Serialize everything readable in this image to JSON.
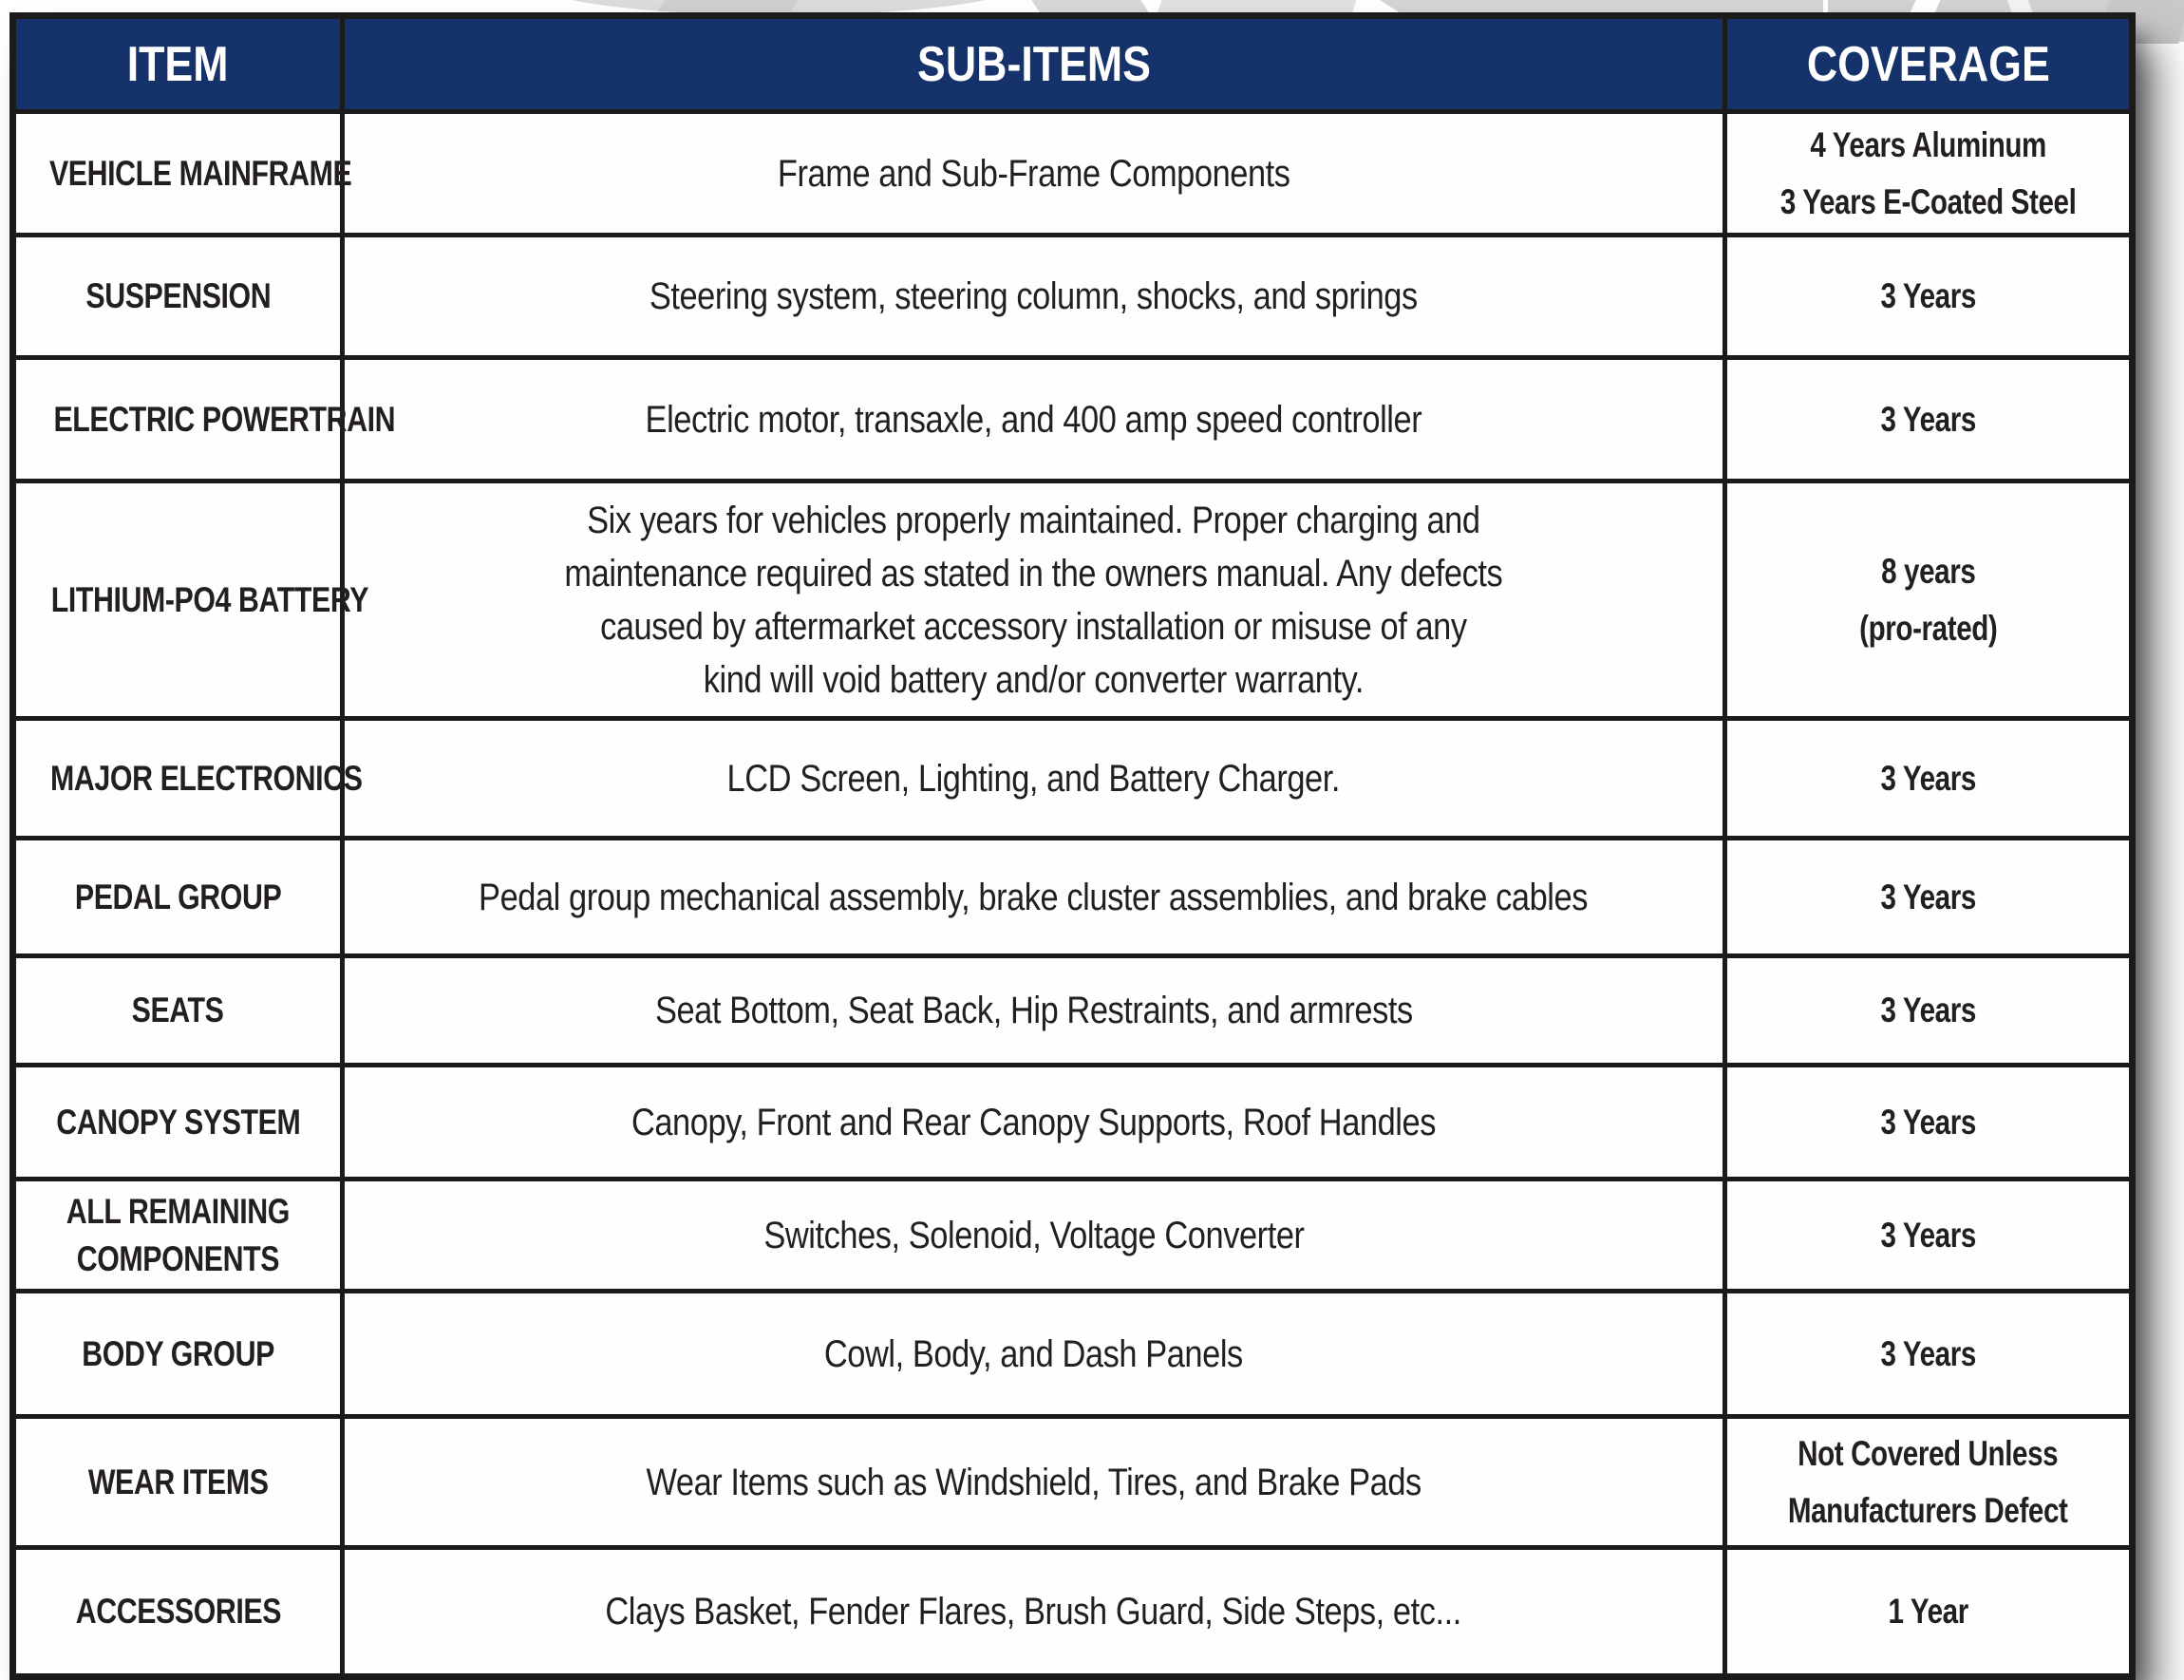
{
  "colors": {
    "header_background": "#16326a",
    "header_text": "#ffffff",
    "body_text": "#231f20",
    "border": "#1b1b1b",
    "watermark_gray": "#d5d5d5"
  },
  "headers": [
    "ITEM",
    "SUB-ITEMS",
    "COVERAGE"
  ],
  "rows": [
    {
      "item": "VEHICLE MAINFRAME",
      "sub_items": "Frame and Sub-Frame Components",
      "coverage": "4 Years Aluminum\n3 Years E-Coated Steel"
    },
    {
      "item": "SUSPENSION",
      "sub_items": "Steering system, steering column, shocks, and springs",
      "coverage": "3 Years"
    },
    {
      "item": "ELECTRIC POWERTRAIN",
      "sub_items": "Electric motor, transaxle, and 400 amp speed controller",
      "coverage": "3 Years"
    },
    {
      "item": "LITHIUM-PO4 BATTERY",
      "sub_items": "Six years for vehicles properly maintained. Proper charging and\nmaintenance required as stated in the owners manual. Any defects\ncaused by aftermarket accessory installation or misuse of any\nkind will void battery and/or converter warranty.",
      "coverage": "8 years\n(pro-rated)"
    },
    {
      "item": "MAJOR ELECTRONICS",
      "sub_items": "LCD Screen, Lighting, and Battery Charger.",
      "coverage": "3 Years"
    },
    {
      "item": "PEDAL GROUP",
      "sub_items": "Pedal group mechanical assembly, brake cluster assemblies, and brake cables",
      "coverage": "3 Years"
    },
    {
      "item": "SEATS",
      "sub_items": "Seat Bottom, Seat Back, Hip Restraints, and armrests",
      "coverage": "3 Years"
    },
    {
      "item": "CANOPY SYSTEM",
      "sub_items": "Canopy, Front and Rear Canopy Supports, Roof Handles",
      "coverage": "3 Years"
    },
    {
      "item": "ALL REMAINING\nCOMPONENTS",
      "sub_items": "Switches, Solenoid, Voltage Converter",
      "coverage": "3 Years"
    },
    {
      "item": "BODY GROUP",
      "sub_items": "Cowl, Body, and Dash Panels",
      "coverage": "3 Years"
    },
    {
      "item": "WEAR ITEMS",
      "sub_items": "Wear Items such as Windshield, Tires, and Brake Pads",
      "coverage": "Not Covered Unless\nManufacturers Defect"
    },
    {
      "item": "ACCESSORIES",
      "sub_items": "Clays Basket, Fender Flares, Brush Guard, Side Steps, etc...",
      "coverage": "1 Year"
    }
  ]
}
